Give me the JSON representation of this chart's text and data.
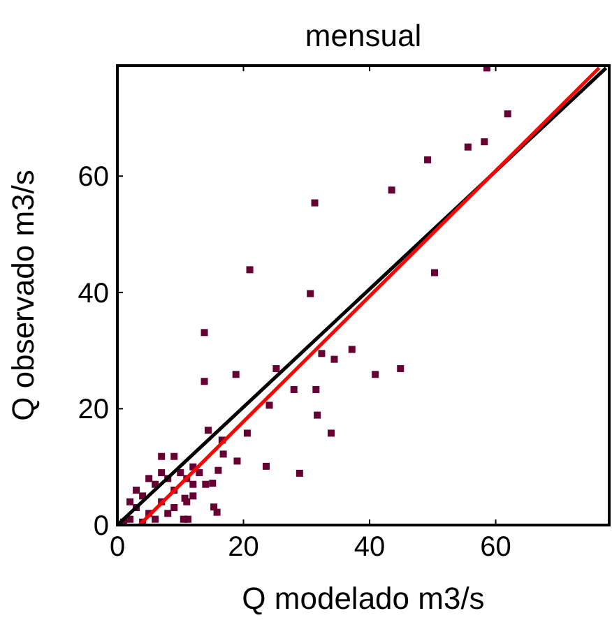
{
  "chart_data": {
    "type": "scatter",
    "title": "mensual",
    "xlabel": "Q modelado m3/s",
    "ylabel": "Q observado m3/s",
    "xlim": [
      0,
      78
    ],
    "ylim": [
      0,
      79
    ],
    "xticks": [
      0,
      20,
      40,
      60
    ],
    "yticks": [
      0,
      20,
      40,
      60
    ],
    "grid": false,
    "series": [
      {
        "color": "#660033",
        "marker": "square",
        "x": [
          31.3,
          21,
          30.6,
          58.6,
          61.9,
          55.6,
          58.2,
          49.2,
          43.5,
          50.3,
          37.2,
          40.9,
          44.9,
          13.8,
          13.8,
          18.8,
          25.2,
          28,
          31.5,
          24.1,
          31.7,
          33.9,
          32.4,
          34.4,
          20.6,
          14.4,
          16.6,
          23.6,
          28.9,
          19,
          16,
          16.8,
          15.1,
          14,
          12,
          10.7,
          7,
          9,
          15.3,
          15.8,
          10.5,
          11.2,
          2,
          3,
          4,
          5,
          6,
          7,
          8,
          9,
          10,
          11,
          12,
          6,
          8,
          3,
          5,
          9,
          13,
          4,
          2,
          7,
          11,
          12,
          1
        ],
        "values": [
          55.4,
          43.9,
          39.8,
          78.6,
          70.7,
          65,
          65.9,
          62.8,
          57.6,
          43.4,
          30.2,
          25.9,
          26.9,
          33.1,
          24.7,
          25.9,
          26.9,
          23.3,
          23.3,
          20.6,
          18.9,
          15.8,
          29.5,
          28.5,
          15.8,
          16.3,
          14.6,
          10.1,
          8.9,
          11,
          9.4,
          12.2,
          7.2,
          7,
          7,
          4.6,
          11.8,
          11.8,
          3.1,
          2.2,
          1,
          1,
          1,
          3,
          5,
          2,
          7,
          4,
          8,
          6,
          9,
          8,
          10,
          1,
          2,
          6,
          8,
          3,
          9,
          0.5,
          4,
          9,
          4,
          5,
          0.5
        ]
      },
      {
        "type": "line",
        "color": "#000000",
        "x": [
          0,
          77.5
        ],
        "values": [
          0,
          78.6
        ]
      },
      {
        "type": "line",
        "color": "#ff0000",
        "x": [
          3.5,
          76.4
        ],
        "values": [
          0,
          78.6
        ]
      }
    ]
  }
}
